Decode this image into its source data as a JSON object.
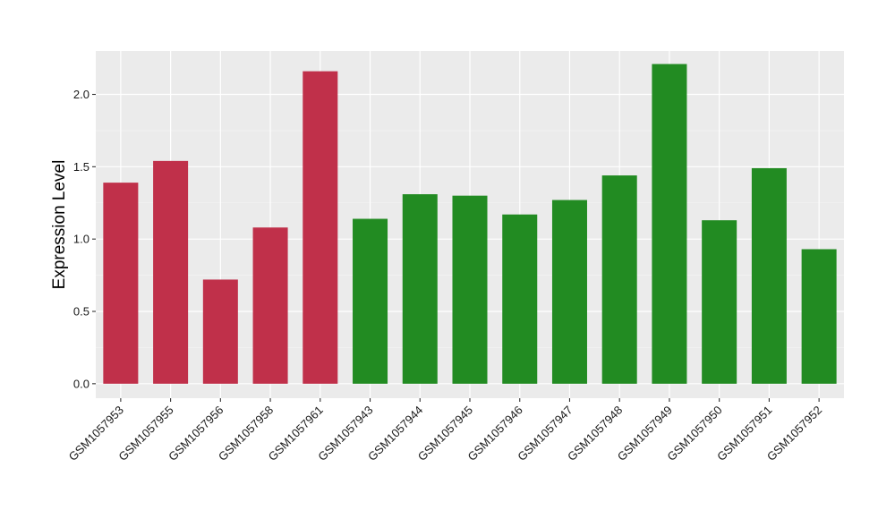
{
  "chart_data": {
    "type": "bar",
    "ylabel": "Expression Level",
    "xlabel": "",
    "ylim": [
      -0.1,
      2.3
    ],
    "yticks": [
      0.0,
      0.5,
      1.0,
      1.5,
      2.0
    ],
    "ytick_labels": [
      "0.0",
      "0.5",
      "1.0",
      "1.5",
      "2.0"
    ],
    "grid": true,
    "panel_color": "#ebebeb",
    "categories": [
      "GSM1057953",
      "GSM1057955",
      "GSM1057956",
      "GSM1057958",
      "GSM1057961",
      "GSM1057943",
      "GSM1057944",
      "GSM1057945",
      "GSM1057946",
      "GSM1057947",
      "GSM1057948",
      "GSM1057949",
      "GSM1057950",
      "GSM1057951",
      "GSM1057952"
    ],
    "values": [
      1.39,
      1.54,
      0.72,
      1.08,
      2.16,
      1.14,
      1.31,
      1.3,
      1.17,
      1.27,
      1.44,
      2.21,
      1.13,
      1.49,
      0.93
    ],
    "bar_colors": [
      "#c0304a",
      "#c0304a",
      "#c0304a",
      "#c0304a",
      "#c0304a",
      "#228b22",
      "#228b22",
      "#228b22",
      "#228b22",
      "#228b22",
      "#228b22",
      "#228b22",
      "#228b22",
      "#228b22",
      "#228b22"
    ]
  }
}
